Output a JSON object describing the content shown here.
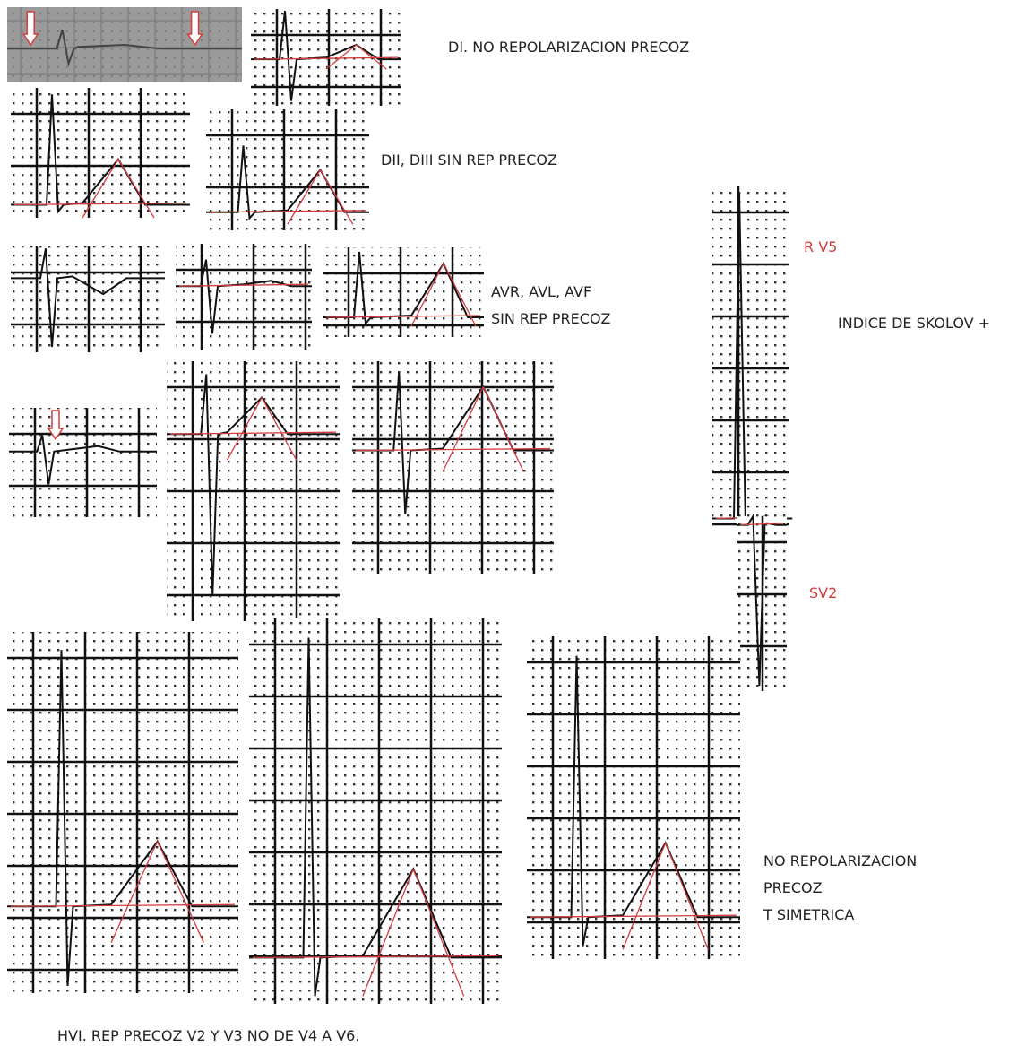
{
  "labels": {
    "di": "DI. NO REPOLARIZACION PRECOZ",
    "dii_diii": "DII, DIII SIN REP PRECOZ",
    "av_line1": "AVR, AVL, AVF",
    "av_line2": "SIN REP PRECOZ",
    "r_v5": "R V5",
    "sokolov": "INDICE DE SKOLOV +",
    "sv2": "SV2",
    "v4_v6_line1": "NO REPOLARIZACION",
    "v4_v6_line2": "PRECOZ",
    "v4_v6_line3": "T SIMETRICA",
    "hvi": "HVI. REP PRECOZ V2 Y V3 NO DE V4 A V6."
  }
}
